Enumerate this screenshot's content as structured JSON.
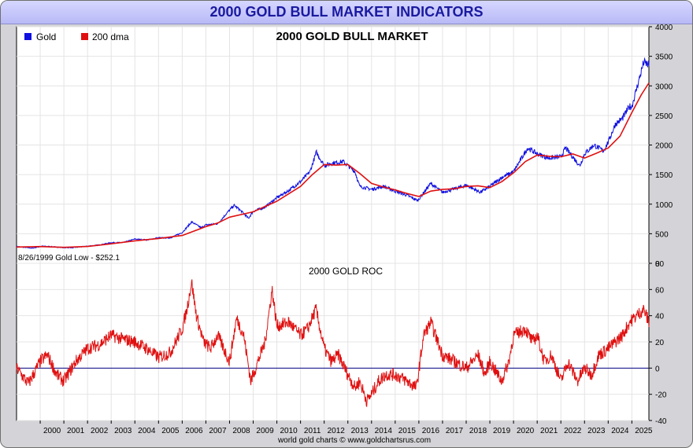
{
  "banner": {
    "title": "2000 GOLD BULL MARKET INDICATORS"
  },
  "footer": {
    "credit": "world gold charts © www.goldchartsrus.com"
  },
  "colors": {
    "gold": "#1010e0",
    "dma": "#e01010",
    "roc": "#e01010",
    "banner_text": "#1a1aa0"
  },
  "chart_data": [
    {
      "type": "line",
      "title": "2000 GOLD BULL MARKET",
      "legend": {
        "placement": "top-left",
        "entries": [
          "Gold",
          "200 dma"
        ]
      },
      "annotation": "8/26/1999 Gold Low - $252.1",
      "ylim": [
        0,
        4000
      ],
      "yticks": [
        0,
        500,
        1000,
        1500,
        2000,
        2500,
        3000,
        3500,
        4000
      ],
      "xlim": [
        1999.0,
        2025.72
      ],
      "grid": true,
      "series": [
        {
          "name": "Gold",
          "x": [
            1999.0,
            1999.65,
            2000.1,
            2000.5,
            2001.0,
            2001.4,
            2002.0,
            2002.5,
            2003.0,
            2003.5,
            2004.0,
            2004.5,
            2005.0,
            2005.5,
            2006.0,
            2006.4,
            2006.8,
            2007.0,
            2007.5,
            2008.0,
            2008.2,
            2008.5,
            2008.8,
            2009.0,
            2009.5,
            2010.0,
            2010.5,
            2011.0,
            2011.4,
            2011.67,
            2012.0,
            2012.3,
            2012.8,
            2013.0,
            2013.3,
            2013.5,
            2014.0,
            2014.5,
            2015.0,
            2015.5,
            2015.95,
            2016.5,
            2017.0,
            2017.5,
            2018.0,
            2018.6,
            2019.0,
            2019.5,
            2020.0,
            2020.6,
            2021.0,
            2021.5,
            2022.0,
            2022.2,
            2022.8,
            2023.0,
            2023.4,
            2023.8,
            2024.0,
            2024.3,
            2024.6,
            2024.9,
            2025.0,
            2025.3,
            2025.5,
            2025.72
          ],
          "y": [
            285,
            255,
            290,
            280,
            265,
            265,
            290,
            310,
            350,
            350,
            410,
            395,
            430,
            430,
            520,
            700,
            600,
            650,
            670,
            900,
            980,
            880,
            760,
            880,
            950,
            1110,
            1230,
            1380,
            1550,
            1880,
            1650,
            1690,
            1720,
            1650,
            1550,
            1300,
            1250,
            1300,
            1220,
            1150,
            1060,
            1350,
            1200,
            1260,
            1320,
            1200,
            1300,
            1450,
            1550,
            1950,
            1850,
            1780,
            1800,
            1950,
            1650,
            1850,
            2000,
            1900,
            2050,
            2350,
            2450,
            2650,
            2650,
            3100,
            3400,
            3350
          ]
        },
        {
          "name": "200 dma",
          "x": [
            1999.0,
            2000.0,
            2001.0,
            2002.0,
            2003.0,
            2004.0,
            2005.0,
            2006.0,
            2007.0,
            2007.5,
            2008.0,
            2009.0,
            2010.0,
            2011.0,
            2011.5,
            2012.0,
            2012.5,
            2013.0,
            2013.5,
            2014.0,
            2014.5,
            2015.0,
            2015.5,
            2016.0,
            2016.5,
            2017.0,
            2017.5,
            2018.0,
            2018.5,
            2019.0,
            2019.5,
            2020.0,
            2020.5,
            2021.0,
            2021.5,
            2022.0,
            2022.5,
            2023.0,
            2023.5,
            2024.0,
            2024.5,
            2025.0,
            2025.4,
            2025.72
          ],
          "y": [
            275,
            283,
            270,
            285,
            330,
            380,
            420,
            470,
            620,
            680,
            780,
            870,
            1050,
            1300,
            1500,
            1670,
            1660,
            1670,
            1520,
            1350,
            1290,
            1240,
            1180,
            1130,
            1220,
            1250,
            1260,
            1300,
            1310,
            1280,
            1380,
            1530,
            1720,
            1830,
            1810,
            1800,
            1850,
            1780,
            1860,
            1950,
            2150,
            2550,
            2850,
            3050
          ]
        }
      ]
    },
    {
      "type": "line",
      "title": "2000 GOLD ROC",
      "ylim": [
        -40,
        80
      ],
      "yticks": [
        -40,
        -20,
        0,
        20,
        40,
        60,
        80
      ],
      "xlim": [
        1999.0,
        2025.72
      ],
      "xtick_labels": [
        "2000",
        "2001",
        "2002",
        "2003",
        "2004",
        "2005",
        "2006",
        "2007",
        "2008",
        "2009",
        "2010",
        "2011",
        "2012",
        "2013",
        "2014",
        "2015",
        "2016",
        "2017",
        "2018",
        "2019",
        "2020",
        "2021",
        "2022",
        "2023",
        "2024",
        "2025"
      ],
      "zero_line": true,
      "grid": true,
      "series": [
        {
          "name": "",
          "x": [
            1999.0,
            1999.5,
            2000.0,
            2000.3,
            2000.7,
            2001.0,
            2001.5,
            2002.0,
            2002.5,
            2003.0,
            2003.5,
            2004.0,
            2004.5,
            2005.0,
            2005.5,
            2006.0,
            2006.2,
            2006.4,
            2006.6,
            2006.9,
            2007.2,
            2007.5,
            2008.0,
            2008.3,
            2008.6,
            2008.9,
            2009.2,
            2009.5,
            2009.8,
            2010.0,
            2010.5,
            2011.0,
            2011.3,
            2011.65,
            2012.0,
            2012.3,
            2012.6,
            2013.0,
            2013.3,
            2013.5,
            2013.8,
            2014.0,
            2014.3,
            2014.6,
            2015.0,
            2015.5,
            2015.9,
            2016.2,
            2016.5,
            2017.0,
            2017.5,
            2018.0,
            2018.5,
            2018.8,
            2019.0,
            2019.5,
            2019.8,
            2020.0,
            2020.5,
            2020.8,
            2021.0,
            2021.3,
            2021.6,
            2022.0,
            2022.3,
            2022.7,
            2023.0,
            2023.3,
            2023.6,
            2024.0,
            2024.3,
            2024.6,
            2024.9,
            2025.2,
            2025.5,
            2025.72
          ],
          "y": [
            0,
            -12,
            5,
            10,
            -5,
            -10,
            5,
            15,
            18,
            25,
            22,
            20,
            15,
            8,
            12,
            30,
            45,
            66,
            40,
            20,
            15,
            25,
            5,
            38,
            25,
            -10,
            5,
            20,
            60,
            32,
            35,
            25,
            30,
            45,
            15,
            5,
            10,
            -5,
            -15,
            -10,
            -25,
            -20,
            -10,
            -5,
            -5,
            -10,
            -15,
            25,
            35,
            10,
            5,
            0,
            10,
            -5,
            5,
            -10,
            5,
            25,
            30,
            20,
            25,
            5,
            10,
            -10,
            5,
            -10,
            0,
            -5,
            10,
            15,
            20,
            25,
            35,
            40,
            45,
            35
          ]
        }
      ]
    }
  ]
}
